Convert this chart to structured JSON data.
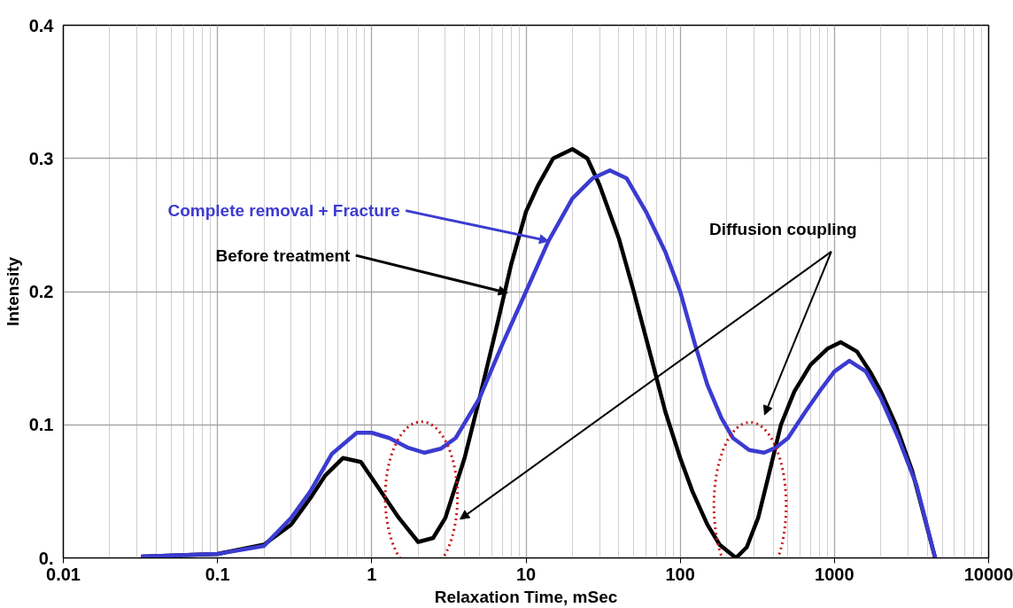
{
  "chart_data": {
    "type": "line",
    "xlabel": "Relaxation Time, mSec",
    "ylabel": "Intensity",
    "log": "x",
    "xlim": [
      0.01,
      10000
    ],
    "ylim": [
      0,
      0.4
    ],
    "xticks": [
      0.01,
      0.1,
      1,
      10,
      100,
      1000,
      10000
    ],
    "yticks": [
      {
        "value": 0,
        "label": "0."
      },
      0.1,
      0.2,
      0.3,
      0.4
    ],
    "grid": true,
    "legend": false,
    "marker": "none",
    "line_style": "solid",
    "series": [
      {
        "color": "#000000",
        "x": [
          0.032,
          0.1,
          0.2,
          0.3,
          0.4,
          0.5,
          0.65,
          0.85,
          1.0,
          1.5,
          2.0,
          2.5,
          3,
          4,
          5,
          6.5,
          8,
          10,
          12,
          15,
          20,
          25,
          30,
          40,
          50,
          65,
          80,
          100,
          120,
          150,
          180,
          230,
          270,
          320,
          380,
          450,
          550,
          700,
          900,
          1100,
          1400,
          1700,
          2000,
          2500,
          3200,
          4500
        ],
        "values": [
          0.001,
          0.003,
          0.01,
          0.025,
          0.045,
          0.062,
          0.075,
          0.072,
          0.06,
          0.03,
          0.012,
          0.015,
          0.03,
          0.075,
          0.12,
          0.175,
          0.22,
          0.26,
          0.28,
          0.3,
          0.307,
          0.3,
          0.28,
          0.24,
          0.2,
          0.15,
          0.11,
          0.075,
          0.05,
          0.025,
          0.01,
          0.0,
          0.008,
          0.03,
          0.065,
          0.1,
          0.125,
          0.145,
          0.157,
          0.162,
          0.155,
          0.14,
          0.125,
          0.1,
          0.065,
          0.0
        ]
      },
      {
        "color": "#3b3bd0",
        "x": [
          0.032,
          0.1,
          0.2,
          0.3,
          0.4,
          0.55,
          0.8,
          1.0,
          1.3,
          1.7,
          2.2,
          2.8,
          3.5,
          5,
          7,
          10,
          14,
          20,
          27,
          35,
          45,
          60,
          80,
          100,
          125,
          150,
          185,
          220,
          280,
          350,
          420,
          500,
          650,
          800,
          1000,
          1250,
          1600,
          2000,
          2600,
          3400,
          4500
        ],
        "values": [
          0.001,
          0.003,
          0.009,
          0.03,
          0.05,
          0.078,
          0.094,
          0.094,
          0.09,
          0.083,
          0.079,
          0.082,
          0.09,
          0.12,
          0.16,
          0.2,
          0.238,
          0.27,
          0.285,
          0.291,
          0.285,
          0.26,
          0.23,
          0.2,
          0.16,
          0.13,
          0.105,
          0.09,
          0.081,
          0.079,
          0.083,
          0.09,
          0.11,
          0.125,
          0.14,
          0.148,
          0.14,
          0.12,
          0.09,
          0.055,
          0.0
        ]
      }
    ],
    "annotations": [
      {
        "text": "Complete removal + Fracture",
        "x": 14,
        "y": 0.238
      },
      {
        "text": "Before treatment",
        "x": 7.6,
        "y": 0.199
      },
      "Diffusion coupling"
    ]
  }
}
